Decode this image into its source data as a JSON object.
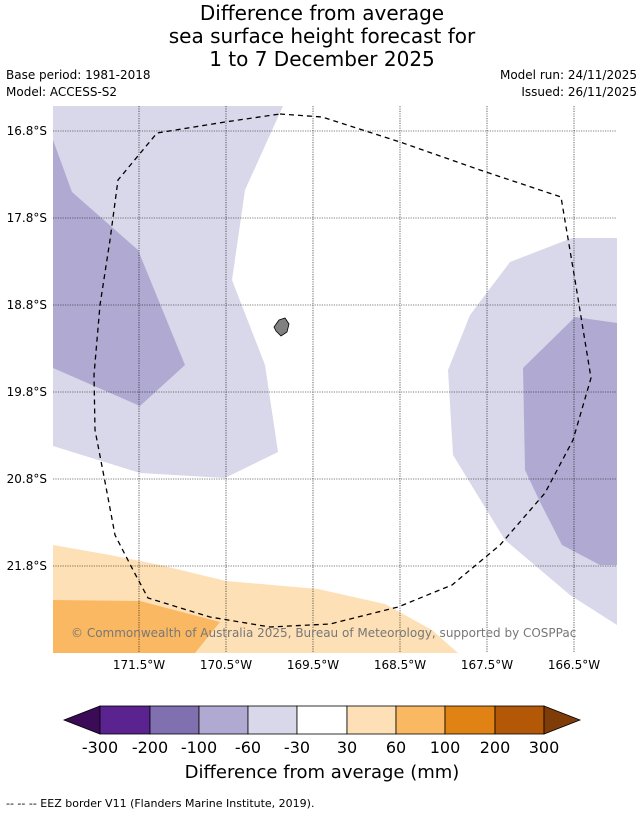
{
  "title": {
    "line1": "Difference from average",
    "line2": "sea surface height forecast for",
    "line3": "1 to 7 December 2025"
  },
  "meta": {
    "base_period": "Base period: 1981-2018",
    "model": "Model: ACCESS-S2",
    "model_run": "Model run: 24/11/2025",
    "issued": "Issued: 26/11/2025"
  },
  "map": {
    "lat_labels": [
      "16.8°S",
      "17.8°S",
      "18.8°S",
      "19.8°S",
      "20.8°S",
      "21.8°S"
    ],
    "lon_labels": [
      "171.5°W",
      "170.5°W",
      "169.5°W",
      "168.5°W",
      "167.5°W",
      "166.5°W"
    ],
    "attribution": "© Commonwealth of Australia 2025, Bureau of Meteorology, supported by COSPPac",
    "colors": {
      "neg60_30": "#d8d8ea",
      "neg100_60": "#b0aad2",
      "pos30_60": "#fde0b6",
      "pos60_100": "#fbb862",
      "land": "#808080"
    }
  },
  "colorbar": {
    "label": "Difference from average (mm)",
    "ticks": [
      "-300",
      "-200",
      "-100",
      "-60",
      "-30",
      "30",
      "60",
      "100",
      "200",
      "300"
    ],
    "colors": [
      "#3b0b57",
      "#5a2390",
      "#8070b0",
      "#b0aad2",
      "#d8d8ea",
      "#ffffff",
      "#fde0b6",
      "#fbb862",
      "#e08214",
      "#b35806",
      "#7f3b08"
    ]
  },
  "footer": {
    "eez_note": "--  --  -- EEZ border V11 (Flanders Marine Institute, 2019)."
  }
}
